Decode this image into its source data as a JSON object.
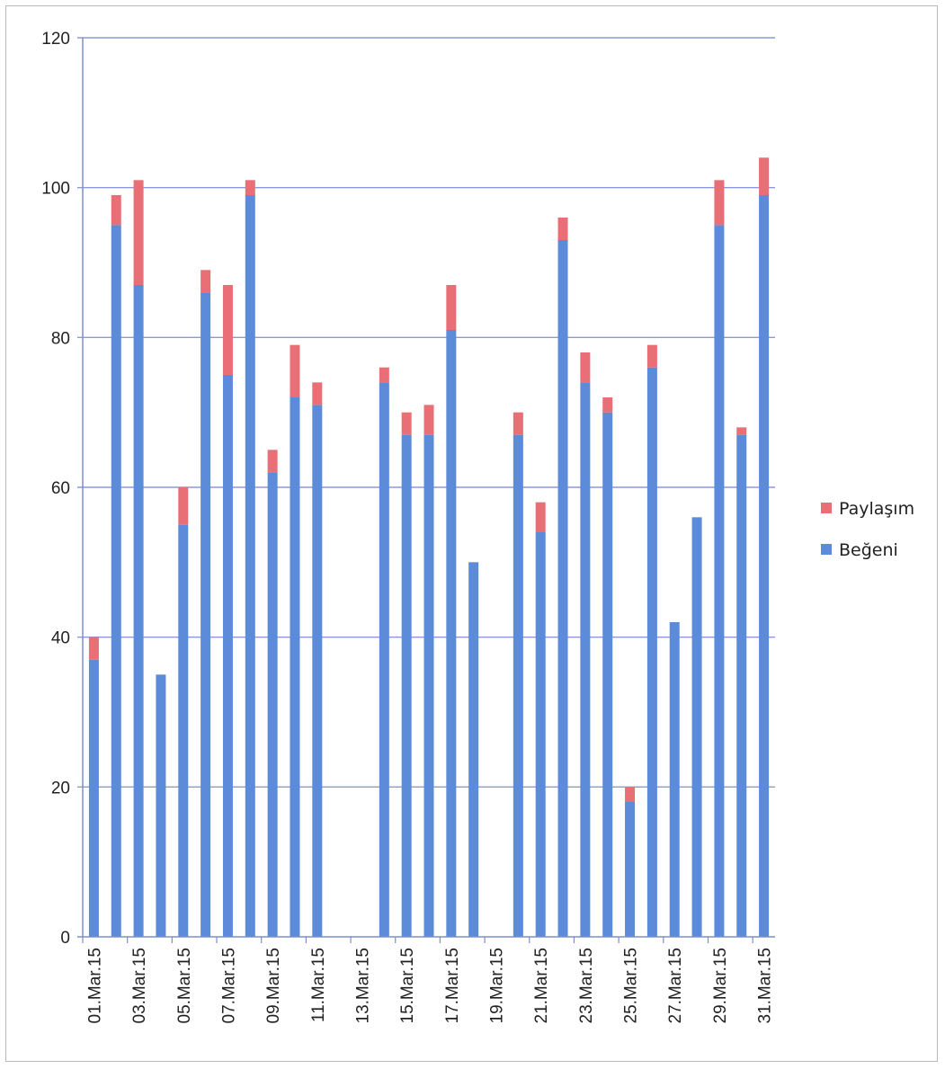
{
  "chart_data": {
    "type": "bar",
    "stacked": true,
    "title": "",
    "xlabel": "",
    "ylabel": "",
    "ylim": [
      0,
      120
    ],
    "yticks": [
      0,
      20,
      40,
      60,
      80,
      100,
      120
    ],
    "grid": true,
    "legend_position": "right",
    "categories": [
      "01.Mar.15",
      "02.Mar.15",
      "03.Mar.15",
      "04.Mar.15",
      "05.Mar.15",
      "06.Mar.15",
      "07.Mar.15",
      "08.Mar.15",
      "09.Mar.15",
      "10.Mar.15",
      "11.Mar.15",
      "12.Mar.15",
      "13.Mar.15",
      "14.Mar.15",
      "15.Mar.15",
      "16.Mar.15",
      "17.Mar.15",
      "18.Mar.15",
      "19.Mar.15",
      "20.Mar.15",
      "21.Mar.15",
      "22.Mar.15",
      "23.Mar.15",
      "24.Mar.15",
      "25.Mar.15",
      "26.Mar.15",
      "27.Mar.15",
      "28.Mar.15",
      "29.Mar.15",
      "30.Mar.15",
      "31.Mar.15"
    ],
    "visible_tick_labels": [
      "01.Mar.15",
      "03.Mar.15",
      "05.Mar.15",
      "07.Mar.15",
      "09.Mar.15",
      "11.Mar.15",
      "13.Mar.15",
      "15.Mar.15",
      "17.Mar.15",
      "19.Mar.15",
      "21.Mar.15",
      "23.Mar.15",
      "25.Mar.15",
      "27.Mar.15",
      "29.Mar.15",
      "31.Mar.15"
    ],
    "series": [
      {
        "name": "Beğeni",
        "color": "#5b8bd9",
        "values": [
          37,
          95,
          87,
          35,
          55,
          86,
          75,
          99,
          62,
          72,
          71,
          0,
          0,
          74,
          67,
          67,
          81,
          50,
          0,
          67,
          54,
          93,
          74,
          70,
          18,
          76,
          42,
          56,
          95,
          67,
          99
        ]
      },
      {
        "name": "Paylaşım",
        "color": "#e96f76",
        "values": [
          3,
          4,
          14,
          0,
          5,
          3,
          12,
          2,
          3,
          7,
          3,
          0,
          0,
          2,
          3,
          4,
          6,
          0,
          0,
          3,
          4,
          3,
          4,
          2,
          2,
          3,
          0,
          0,
          6,
          1,
          5
        ]
      }
    ],
    "legend_order": [
      "Paylaşım",
      "Beğeni"
    ],
    "colors": {
      "gridline": "#8e98d8",
      "axis": "#7d8ed0"
    }
  }
}
